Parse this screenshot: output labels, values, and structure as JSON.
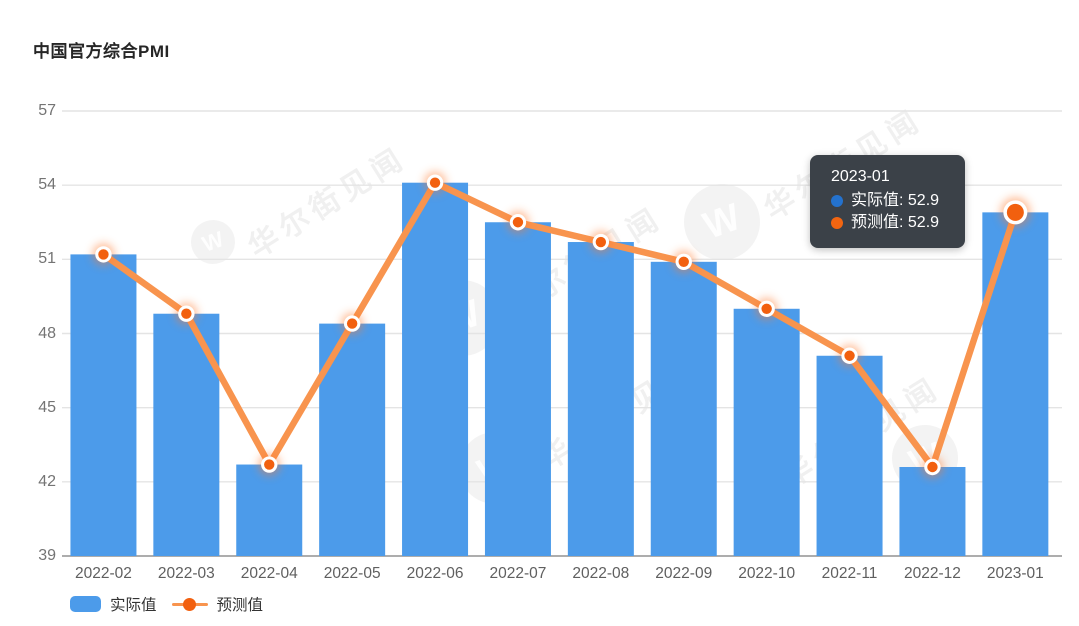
{
  "header": {
    "title": "中国官方综合PMI"
  },
  "chart_data": {
    "type": "bar",
    "title": "中国官方综合PMI",
    "categories": [
      "2022-02",
      "2022-03",
      "2022-04",
      "2022-05",
      "2022-06",
      "2022-07",
      "2022-08",
      "2022-09",
      "2022-10",
      "2022-11",
      "2022-12",
      "2023-01"
    ],
    "series": [
      {
        "name": "实际值",
        "type": "bar",
        "color": "#4C9BEA",
        "values": [
          51.2,
          48.8,
          42.7,
          48.4,
          54.1,
          52.5,
          51.7,
          50.9,
          49.0,
          47.1,
          42.6,
          52.9
        ]
      },
      {
        "name": "预测值",
        "type": "line",
        "color": "#F8944E",
        "marker_color": "#F2600F",
        "values": [
          51.2,
          48.8,
          42.7,
          48.4,
          54.1,
          52.5,
          51.7,
          50.9,
          49.0,
          47.1,
          42.6,
          52.9
        ]
      }
    ],
    "xlabel": "",
    "ylabel": "",
    "ylim": [
      39,
      57
    ],
    "yticks": [
      39,
      42,
      45,
      48,
      51,
      54,
      57
    ],
    "grid": true,
    "legend_position": "bottom-left",
    "active_point": {
      "category": "2023-01",
      "index": 11
    }
  },
  "tooltip": {
    "title": "2023-01",
    "rows": [
      {
        "text": "实际值: 52.9",
        "dot_color": "#2472CE"
      },
      {
        "text": "预测值: 52.9",
        "dot_color": "#F26511"
      }
    ]
  },
  "legend": {
    "items": [
      {
        "label": "实际值",
        "swatch": "bar"
      },
      {
        "label": "预测值",
        "swatch": "line-dot"
      }
    ]
  },
  "watermark": {
    "text": "华尔街见闻",
    "logo_glyph": "W"
  },
  "colors": {
    "bar": "#4C9BEA",
    "line": "#F8944E",
    "marker": "#F2600F",
    "grid": "#E4E4E4",
    "axis": "#ADADAD",
    "tooltip_bg": "#3B4148"
  }
}
